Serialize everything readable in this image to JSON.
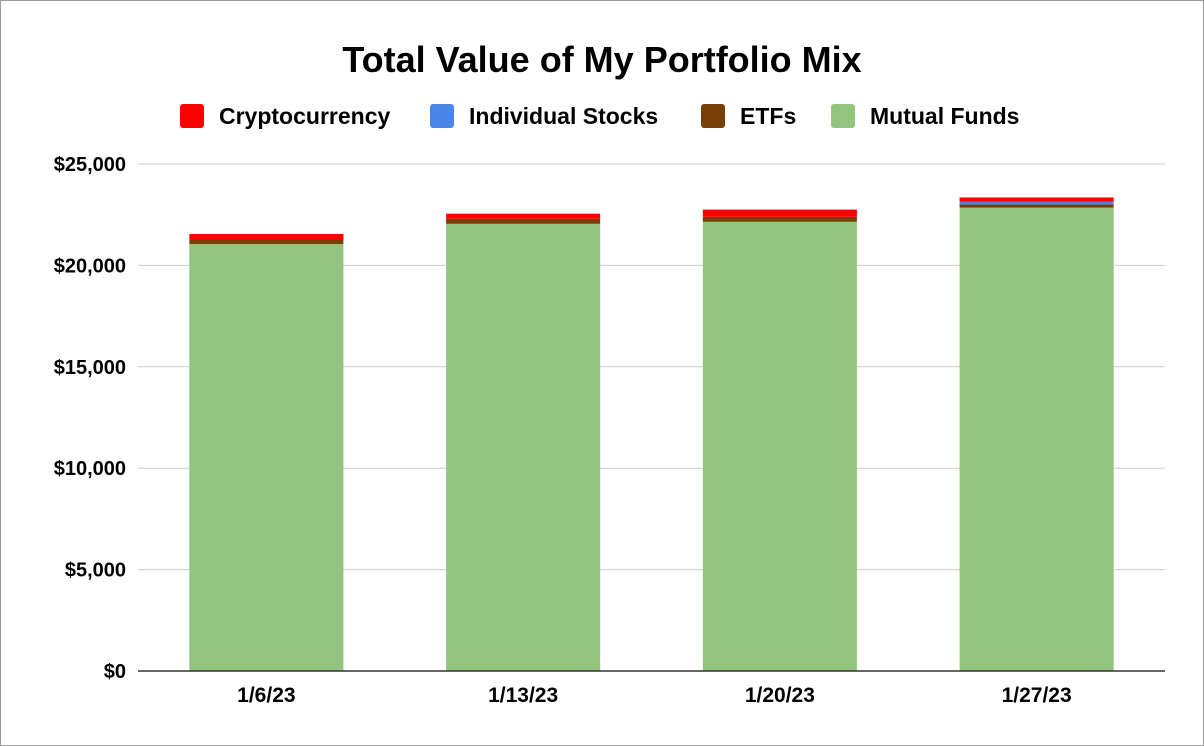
{
  "chart_data": {
    "type": "bar",
    "stacked": true,
    "title": "Total Value of My Portfolio Mix",
    "xlabel": "",
    "ylabel": "",
    "categories": [
      "1/6/23",
      "1/13/23",
      "1/20/23",
      "1/27/23"
    ],
    "ylim": [
      0,
      25000
    ],
    "yticks": [
      0,
      5000,
      10000,
      15000,
      20000,
      25000
    ],
    "ytick_labels": [
      "$0",
      "$5,000",
      "$10,000",
      "$15,000",
      "$20,000",
      "$25,000"
    ],
    "grid": true,
    "legend_position": "top",
    "series": [
      {
        "name": "Mutual Funds",
        "color": "#93c47d",
        "values": [
          21050,
          22050,
          22150,
          22850
        ]
      },
      {
        "name": "ETFs",
        "color": "#783f04",
        "values": [
          250,
          250,
          250,
          150
        ]
      },
      {
        "name": "Individual Stocks",
        "color": "#4a86e8",
        "values": [
          0,
          0,
          0,
          150
        ]
      },
      {
        "name": "Cryptocurrency",
        "color": "#ff0000",
        "values": [
          250,
          250,
          350,
          200
        ]
      }
    ],
    "legend_order": [
      "Cryptocurrency",
      "Individual Stocks",
      "ETFs",
      "Mutual Funds"
    ]
  }
}
